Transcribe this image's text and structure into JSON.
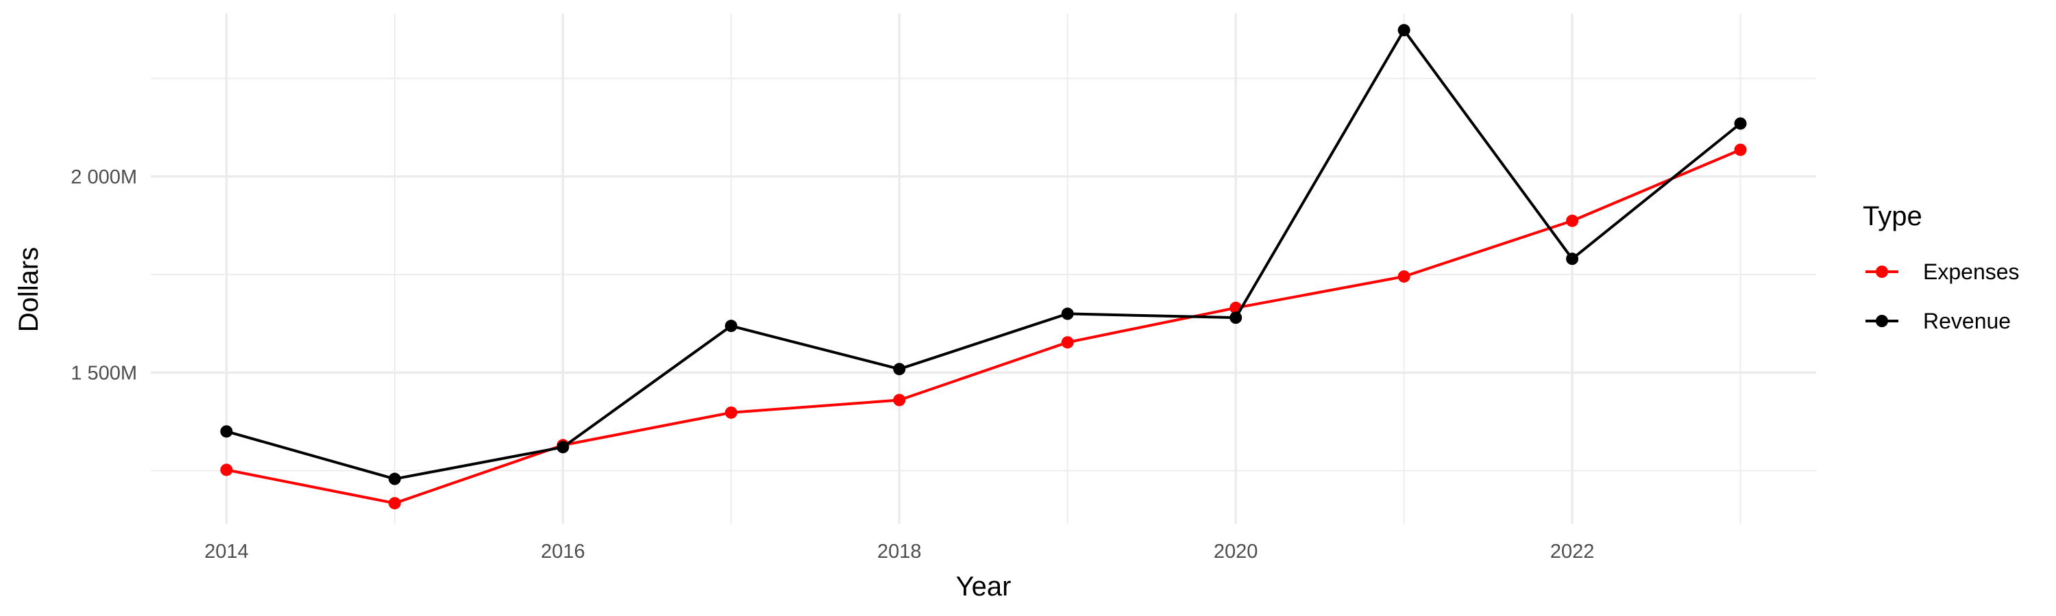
{
  "chart_data": {
    "type": "line",
    "xlabel": "Year",
    "ylabel": "Dollars",
    "x": [
      2014,
      2015,
      2016,
      2017,
      2018,
      2019,
      2020,
      2021,
      2022,
      2023
    ],
    "x_ticks": [
      2014,
      2016,
      2018,
      2020,
      2022
    ],
    "x_tick_labels": [
      "2014",
      "2016",
      "2018",
      "2020",
      "2022"
    ],
    "xlim": [
      2013.55,
      2023.45
    ],
    "y_ticks": [
      1500,
      2000
    ],
    "y_tick_labels": [
      "1 500M",
      "2 000M"
    ],
    "y_minor_ticks": [
      1250,
      1750,
      2250
    ],
    "ylim": [
      1115,
      2415
    ],
    "y_unit": "millions",
    "grid": true,
    "legend": {
      "title": "Type",
      "placement": "right"
    },
    "series": [
      {
        "name": "Expenses",
        "color": "#ff0000",
        "values": [
          1252,
          1167,
          1315,
          1398,
          1430,
          1577,
          1665,
          1745,
          1887,
          2068
        ]
      },
      {
        "name": "Revenue",
        "color": "#000000",
        "values": [
          1350,
          1229,
          1310,
          1619,
          1509,
          1650,
          1640,
          2373,
          1790,
          2135
        ]
      }
    ]
  }
}
